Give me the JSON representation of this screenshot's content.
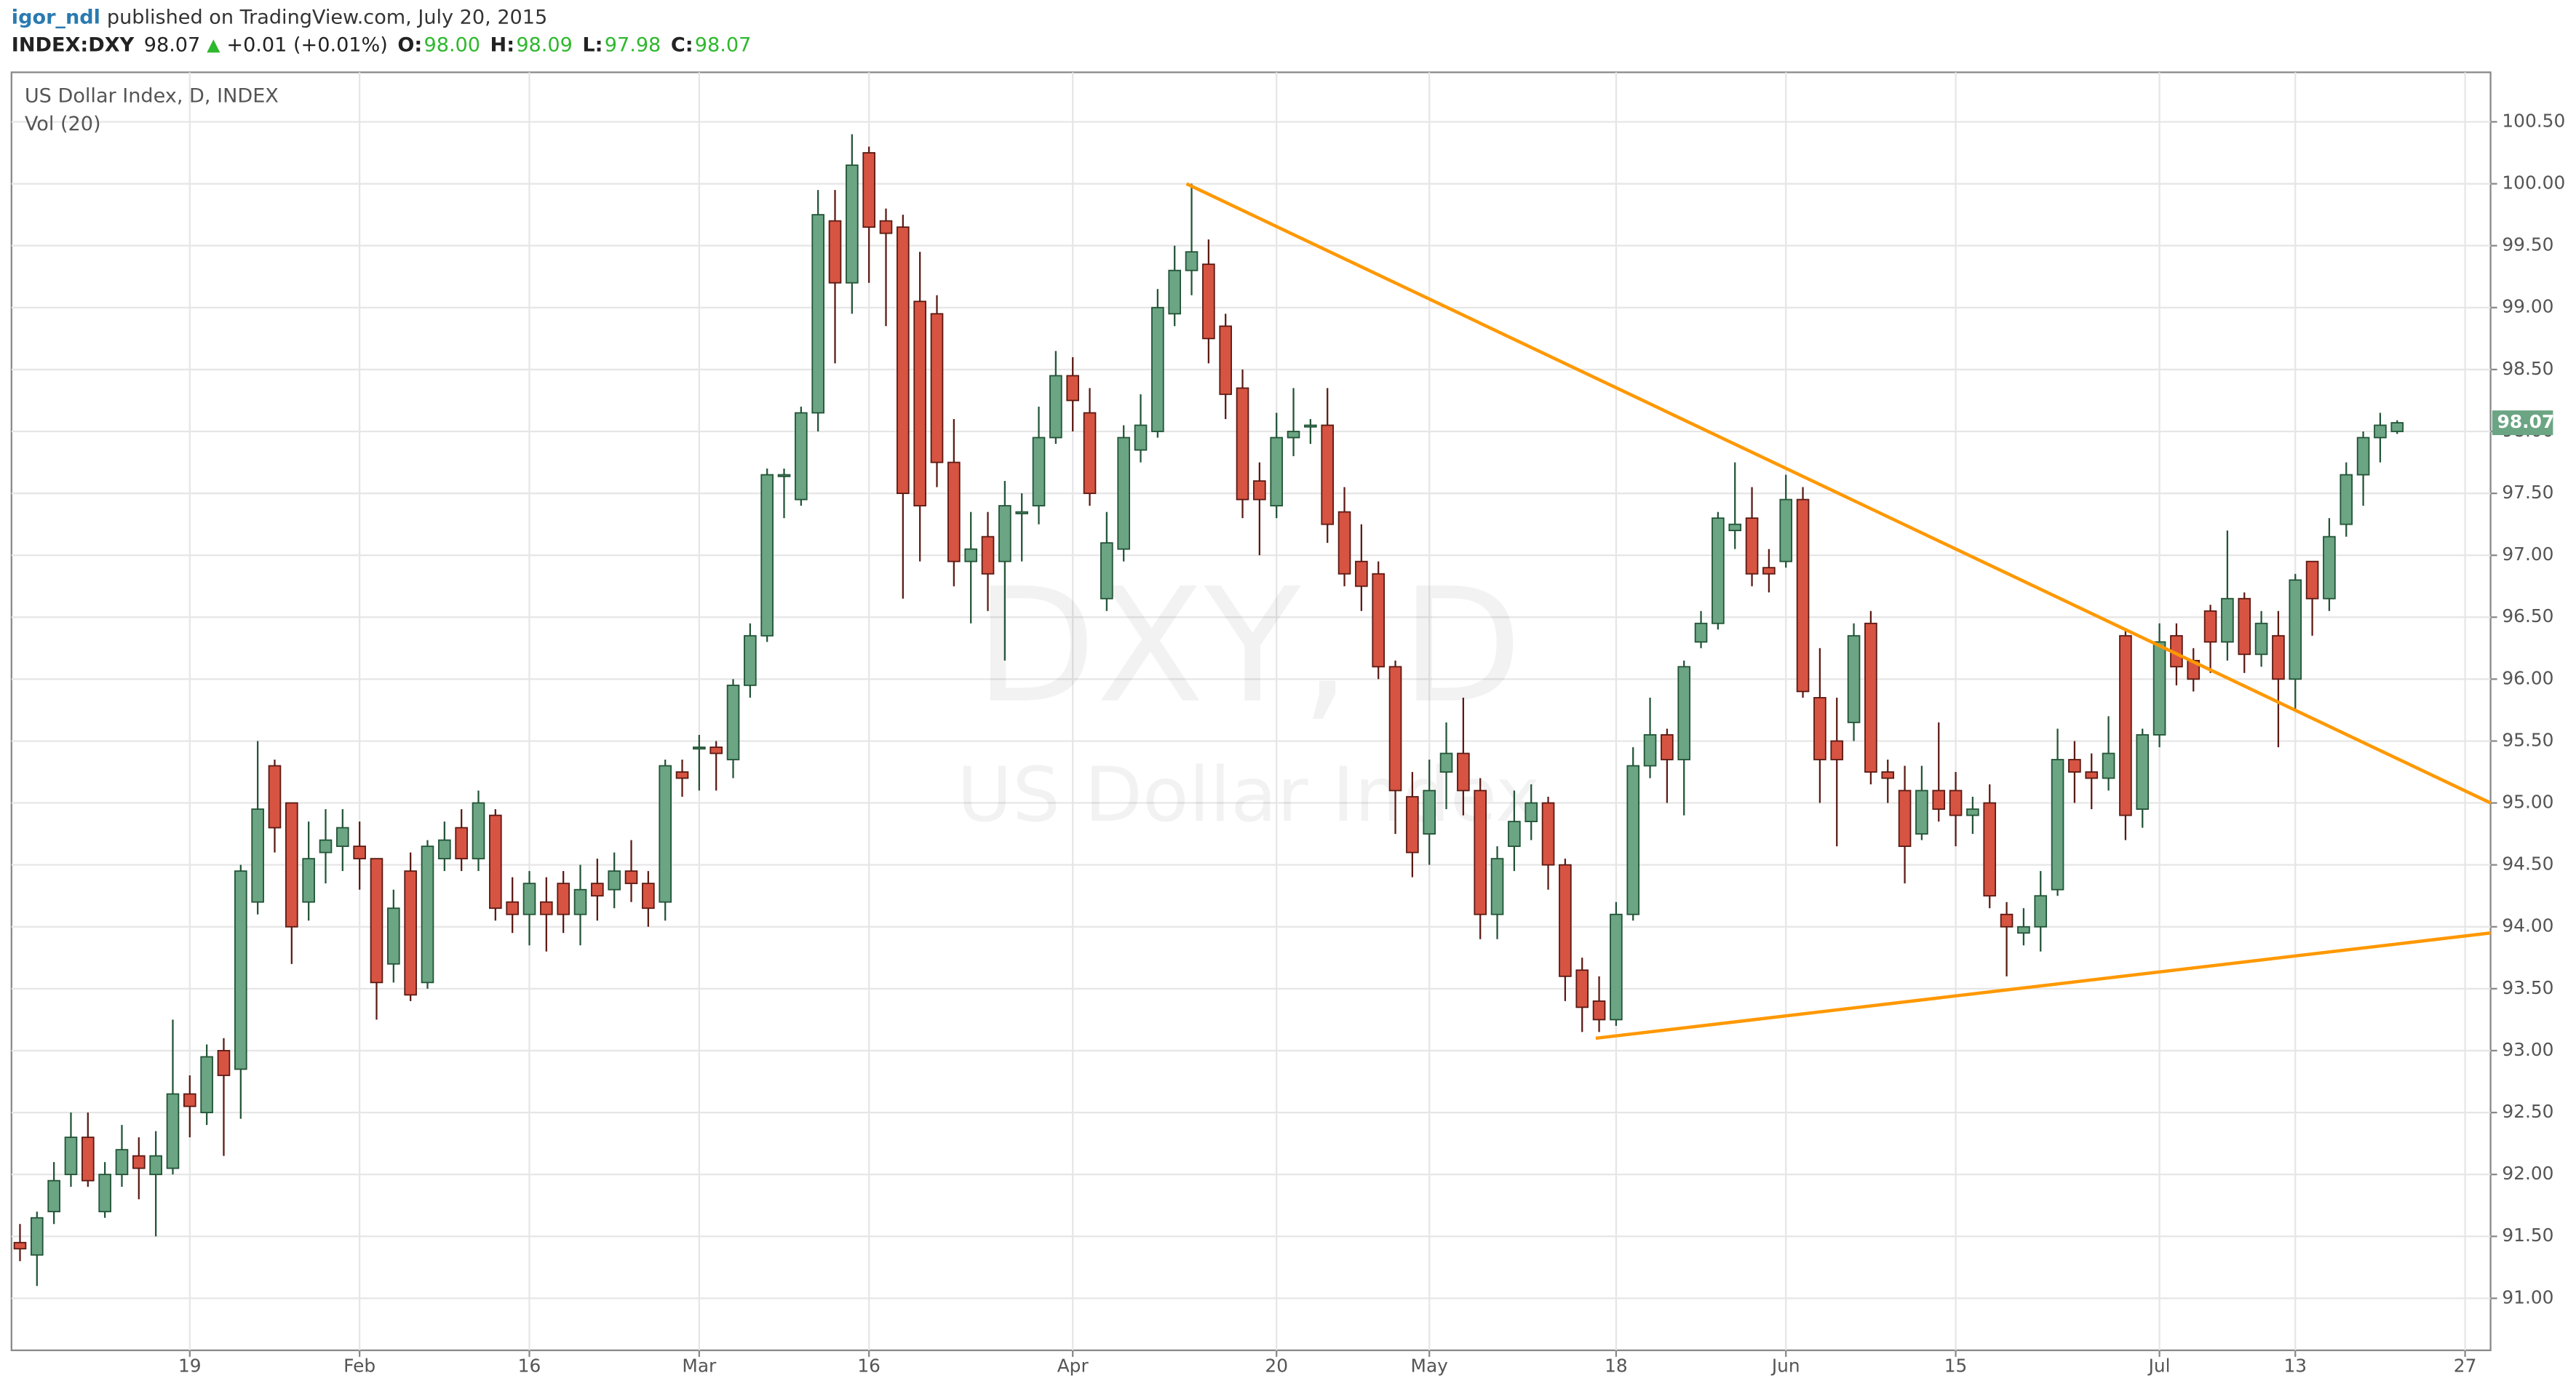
{
  "header": {
    "author": "igor_ndl",
    "published": "published on TradingView.com, July 20, 2015"
  },
  "quote": {
    "symbol": "INDEX:DXY",
    "last": "98.07",
    "change": "+0.01 (+0.01%)",
    "ohlc": [
      {
        "label": "O:",
        "value": "98.00"
      },
      {
        "label": "H:",
        "value": "98.09"
      },
      {
        "label": "L:",
        "value": "97.98"
      },
      {
        "label": "C:",
        "value": "98.07"
      }
    ]
  },
  "chart_data": {
    "type": "candlestick",
    "title": "US Dollar Index, D, INDEX",
    "subtitle": "Vol (20)",
    "watermark": [
      "DXY, D",
      "US Dollar Index"
    ],
    "last_label": "98.07",
    "up_color": "#6ba583",
    "down_color": "#d75442",
    "grid": true,
    "categories": [
      null,
      null,
      null,
      null,
      null,
      null,
      null,
      null,
      null,
      null,
      "19",
      null,
      null,
      null,
      null,
      null,
      null,
      null,
      null,
      null,
      "Feb",
      null,
      null,
      null,
      null,
      null,
      null,
      null,
      null,
      null,
      "16",
      null,
      null,
      null,
      null,
      null,
      null,
      null,
      null,
      null,
      "Mar",
      null,
      null,
      null,
      null,
      null,
      null,
      null,
      null,
      null,
      "16",
      null,
      null,
      null,
      null,
      null,
      null,
      null,
      null,
      null,
      null,
      null,
      "Apr",
      null,
      null,
      null,
      null,
      null,
      null,
      null,
      null,
      null,
      null,
      null,
      "20",
      null,
      null,
      null,
      null,
      null,
      null,
      null,
      null,
      "May",
      null,
      null,
      null,
      null,
      null,
      null,
      null,
      null,
      null,
      null,
      "18",
      null,
      null,
      null,
      null,
      null,
      null,
      null,
      null,
      null,
      "Jun",
      null,
      null,
      null,
      null,
      null,
      null,
      null,
      null,
      null,
      "15",
      null,
      null,
      null,
      null,
      null,
      null,
      null,
      null,
      null,
      null,
      null,
      "Jul",
      null,
      null,
      null,
      null,
      null,
      null,
      null,
      "13",
      null,
      null,
      null,
      null,
      null,
      null,
      null,
      null,
      null,
      "27",
      null
    ],
    "open": [
      91.45,
      91.35,
      91.7,
      92.0,
      92.3,
      91.7,
      92.0,
      92.15,
      92.0,
      92.05,
      92.65,
      92.5,
      93.0,
      92.85,
      94.2,
      95.3,
      95.0,
      94.2,
      94.6,
      94.65,
      94.65,
      94.55,
      93.7,
      94.45,
      93.55,
      94.55,
      94.8,
      94.55,
      94.9,
      94.2,
      94.1,
      94.2,
      94.35,
      94.1,
      94.35,
      94.3,
      94.45,
      94.35,
      94.2,
      95.25,
      95.45,
      95.45,
      95.35,
      95.95,
      96.35,
      97.65,
      97.45,
      98.15,
      99.7,
      99.2,
      100.25,
      99.7,
      99.65,
      99.05,
      98.95,
      97.75,
      96.95,
      97.15,
      96.95,
      97.35,
      97.4,
      97.95,
      98.45,
      98.15,
      96.65,
      97.05,
      97.85,
      98.0,
      98.95,
      99.3,
      99.35,
      98.85,
      98.35,
      97.6,
      97.4,
      97.95,
      98.05,
      98.05,
      97.35,
      96.95,
      96.85,
      96.1,
      95.05,
      94.75,
      95.25,
      95.4,
      95.1,
      94.1,
      94.65,
      94.85,
      95.0,
      94.5,
      93.65,
      93.4,
      93.25,
      94.1,
      95.3,
      95.55,
      95.35,
      96.3,
      96.45,
      97.2,
      97.3,
      96.9,
      96.95,
      97.45,
      95.85,
      95.5,
      95.65,
      96.45,
      95.25,
      95.1,
      94.75,
      95.1,
      95.1,
      94.9,
      95.0,
      94.1,
      93.95,
      94.0,
      94.3,
      95.35,
      95.25,
      95.2,
      96.35,
      94.95,
      95.55,
      96.35,
      96.15,
      96.55,
      96.3,
      96.65,
      96.2,
      96.35,
      96.0,
      96.95,
      96.65,
      97.25,
      97.65,
      97.95,
      98.0,
      null,
      null,
      null,
      null,
      null
    ],
    "high": [
      91.6,
      91.7,
      92.1,
      92.5,
      92.5,
      92.1,
      92.4,
      92.3,
      92.35,
      93.25,
      92.8,
      93.05,
      93.1,
      94.5,
      95.5,
      95.35,
      95.0,
      94.85,
      94.95,
      94.95,
      94.85,
      94.55,
      94.3,
      94.6,
      94.7,
      94.85,
      94.95,
      95.1,
      94.95,
      94.4,
      94.45,
      94.4,
      94.45,
      94.5,
      94.55,
      94.6,
      94.7,
      94.45,
      95.35,
      95.35,
      95.55,
      95.5,
      96.0,
      96.45,
      97.7,
      97.7,
      98.2,
      99.95,
      99.95,
      100.4,
      100.3,
      99.8,
      99.75,
      99.45,
      99.1,
      98.1,
      97.35,
      97.35,
      97.6,
      97.5,
      98.2,
      98.65,
      98.6,
      98.35,
      97.35,
      98.05,
      98.3,
      99.15,
      99.5,
      100.0,
      99.55,
      98.95,
      98.5,
      97.75,
      98.15,
      98.35,
      98.1,
      98.35,
      97.55,
      97.25,
      96.95,
      96.15,
      95.25,
      95.35,
      95.65,
      95.85,
      95.2,
      94.65,
      95.1,
      95.15,
      95.05,
      94.55,
      93.75,
      93.6,
      94.2,
      95.45,
      95.85,
      95.6,
      96.15,
      96.55,
      97.35,
      97.75,
      97.55,
      97.05,
      97.65,
      97.55,
      96.25,
      95.85,
      96.45,
      96.55,
      95.35,
      95.3,
      95.3,
      95.65,
      95.25,
      95.05,
      95.15,
      94.2,
      94.15,
      94.45,
      95.6,
      95.5,
      95.4,
      95.7,
      96.4,
      95.6,
      96.45,
      96.45,
      96.25,
      96.6,
      97.2,
      96.7,
      96.55,
      96.55,
      96.85,
      96.95,
      97.3,
      97.75,
      98.0,
      98.15,
      98.09,
      null,
      null,
      null,
      null,
      null
    ],
    "low": [
      91.3,
      91.1,
      91.6,
      91.9,
      91.9,
      91.65,
      91.9,
      91.8,
      91.5,
      92.0,
      92.3,
      92.4,
      92.15,
      92.45,
      94.1,
      94.6,
      93.7,
      94.05,
      94.35,
      94.45,
      94.3,
      93.25,
      93.55,
      93.4,
      93.5,
      94.45,
      94.45,
      94.45,
      94.05,
      93.95,
      93.85,
      93.8,
      93.95,
      93.85,
      94.05,
      94.15,
      94.2,
      94.0,
      94.05,
      95.05,
      95.1,
      95.1,
      95.2,
      95.85,
      96.3,
      97.3,
      97.4,
      98.0,
      98.55,
      98.95,
      99.2,
      98.85,
      96.65,
      96.95,
      97.55,
      96.75,
      96.45,
      96.55,
      96.15,
      96.95,
      97.25,
      97.9,
      98.0,
      97.4,
      96.55,
      96.95,
      97.75,
      97.95,
      98.85,
      99.1,
      98.55,
      98.1,
      97.3,
      97.0,
      97.3,
      97.8,
      97.9,
      97.1,
      96.75,
      96.55,
      96.0,
      94.75,
      94.4,
      94.5,
      94.95,
      94.9,
      93.9,
      93.9,
      94.45,
      94.7,
      94.3,
      93.4,
      93.15,
      93.15,
      93.2,
      94.05,
      95.2,
      95.0,
      94.9,
      96.25,
      96.4,
      97.05,
      96.75,
      96.7,
      96.9,
      95.85,
      95.0,
      94.65,
      95.5,
      95.15,
      95.0,
      94.35,
      94.7,
      94.85,
      94.65,
      94.75,
      94.15,
      93.6,
      93.85,
      93.8,
      94.25,
      95.0,
      94.95,
      95.1,
      94.7,
      94.8,
      95.45,
      95.95,
      95.9,
      96.05,
      96.15,
      96.05,
      96.1,
      95.45,
      95.75,
      96.35,
      96.55,
      97.15,
      97.4,
      97.75,
      97.98,
      null,
      null,
      null,
      null,
      null
    ],
    "close": [
      91.4,
      91.65,
      91.95,
      92.3,
      91.95,
      92.0,
      92.2,
      92.05,
      92.15,
      92.65,
      92.55,
      92.95,
      92.8,
      94.45,
      94.95,
      94.8,
      94.0,
      94.55,
      94.7,
      94.8,
      94.55,
      93.55,
      94.15,
      93.45,
      94.65,
      94.7,
      94.55,
      95.0,
      94.15,
      94.1,
      94.35,
      94.1,
      94.1,
      94.3,
      94.25,
      94.45,
      94.35,
      94.15,
      95.3,
      95.2,
      95.45,
      95.4,
      95.95,
      96.35,
      97.65,
      97.65,
      98.15,
      99.75,
      99.2,
      100.15,
      99.65,
      99.6,
      97.5,
      97.4,
      97.75,
      96.95,
      97.05,
      96.85,
      97.4,
      97.35,
      97.95,
      98.45,
      98.25,
      97.5,
      97.1,
      97.95,
      98.05,
      99.0,
      99.3,
      99.45,
      98.75,
      98.3,
      97.45,
      97.45,
      97.95,
      98.0,
      98.05,
      97.25,
      96.85,
      96.75,
      96.1,
      95.1,
      94.6,
      95.1,
      95.4,
      95.1,
      94.1,
      94.55,
      94.85,
      95.0,
      94.5,
      93.6,
      93.35,
      93.25,
      94.1,
      95.3,
      95.55,
      95.35,
      96.1,
      96.45,
      97.3,
      97.25,
      96.85,
      96.85,
      97.45,
      95.9,
      95.35,
      95.35,
      96.35,
      95.25,
      95.2,
      94.65,
      95.1,
      94.95,
      94.9,
      94.95,
      94.25,
      94.0,
      94.0,
      94.25,
      95.35,
      95.25,
      95.2,
      95.4,
      94.9,
      95.55,
      96.3,
      96.1,
      96.0,
      96.3,
      96.65,
      96.2,
      96.45,
      96.0,
      96.8,
      96.65,
      97.15,
      97.65,
      97.95,
      98.05,
      98.07,
      null,
      null,
      null,
      null,
      null
    ],
    "ylim": [
      90.58,
      100.9
    ],
    "yticks": [
      {
        "value": 91,
        "label": "91.00"
      },
      {
        "value": 91.5,
        "label": "91.50"
      },
      {
        "value": 92,
        "label": "92.00"
      },
      {
        "value": 92.5,
        "label": "92.50"
      },
      {
        "value": 93,
        "label": "93.00"
      },
      {
        "value": 93.5,
        "label": "93.50"
      },
      {
        "value": 94,
        "label": "94.00"
      },
      {
        "value": 94.5,
        "label": "94.50"
      },
      {
        "value": 95,
        "label": "95.00"
      },
      {
        "value": 95.5,
        "label": "95.50"
      },
      {
        "value": 96,
        "label": "96.00"
      },
      {
        "value": 96.5,
        "label": "96.50"
      },
      {
        "value": 97,
        "label": "97.00"
      },
      {
        "value": 97.5,
        "label": "97.50"
      },
      {
        "value": 98,
        "label": "98.00"
      },
      {
        "value": 98.5,
        "label": "98.50"
      },
      {
        "value": 99,
        "label": "99.00"
      },
      {
        "value": 99.5,
        "label": "99.50"
      },
      {
        "value": 100,
        "label": "100.00"
      },
      {
        "value": 100.5,
        "label": "100.50"
      }
    ],
    "trendlines": [
      {
        "color": "#ff9800",
        "points": [
          [
            68.7,
            100.0
          ],
          [
            145.5,
            95.0
          ]
        ]
      },
      {
        "color": "#ff9800",
        "points": [
          [
            92.8,
            93.1
          ],
          [
            145.5,
            93.95
          ]
        ]
      }
    ]
  }
}
